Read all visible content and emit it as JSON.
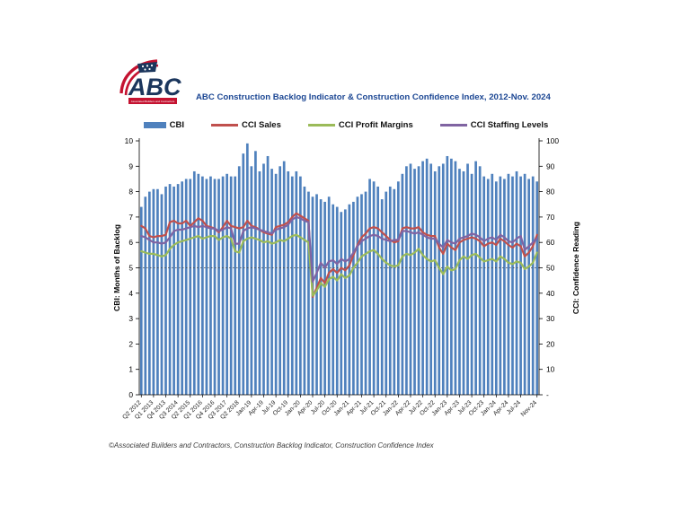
{
  "header": {
    "title": "ABC Construction Backlog Indicator & Construction Confidence Index, 2012-Nov. 2024",
    "title_color": "#1B4693",
    "logo": {
      "text": "ABC",
      "subtext": "Associated Builders and Contractors",
      "navy": "#1B365D",
      "red": "#C41230"
    }
  },
  "footer": {
    "text": "©Associated Builders and Contractors, Construction Backlog Indicator, Construction Confidence Index"
  },
  "legend": {
    "items": [
      {
        "label": "CBI",
        "type": "bar",
        "color": "#4F81BD"
      },
      {
        "label": "CCI Sales",
        "type": "line",
        "color": "#C0504D"
      },
      {
        "label": "CCI Profit Margins",
        "type": "line",
        "color": "#9BBB59"
      },
      {
        "label": "CCI Staffing Levels",
        "type": "line",
        "color": "#8064A2"
      }
    ]
  },
  "chart_data": {
    "type": "bar",
    "combo": "bars on left axis + 3 lines on right axis",
    "title": "ABC Construction Backlog Indicator & Construction Confidence Index, 2012-Nov. 2024",
    "cadence_note": "98 periods: quarterly Q2 2012-Q4 2018, monthly Jan 2019-Nov 2024",
    "left_axis": {
      "label": "CBI: Months of Backlog",
      "min": 0,
      "max": 10,
      "tick_step": 1
    },
    "right_axis": {
      "label": "CCI: Confidence Reading",
      "min": 0,
      "max": 100,
      "tick_step": 10,
      "zero_tick_label": "-"
    },
    "reference_line": {
      "axis": "right",
      "value": 50,
      "style": "dotted"
    },
    "grid": false,
    "legend_position": "top",
    "x_tick_labels": [
      "Q2 2012",
      "Q1 2013",
      "Q4 2013",
      "Q3 2014",
      "Q2 2015",
      "Q1 2016",
      "Q4 2016",
      "Q3 2017",
      "Q2 2018",
      "Jan-19",
      "Apr-19",
      "Jul-19",
      "Oct-19",
      "Jan-20",
      "Apr-20",
      "Jul-20",
      "Oct-20",
      "Jan-21",
      "Apr-21",
      "Jul-21",
      "Oct-21",
      "Jan-22",
      "Apr-22",
      "Jul-22",
      "Oct-22",
      "Jan-23",
      "Apr-23",
      "Jul-23",
      "Oct-23",
      "Jan-24",
      "Apr-24",
      "Jul-24",
      "Nov-24"
    ],
    "x_tick_bar_index": [
      0,
      3,
      6,
      9,
      12,
      15,
      18,
      21,
      24,
      27,
      30,
      33,
      36,
      39,
      42,
      45,
      48,
      51,
      54,
      57,
      60,
      63,
      66,
      69,
      72,
      75,
      78,
      81,
      84,
      87,
      90,
      93,
      97
    ],
    "bars": {
      "name": "CBI",
      "axis": "left",
      "color": "#4F81BD",
      "values": [
        7.4,
        7.8,
        8.0,
        8.1,
        8.1,
        7.9,
        8.2,
        8.3,
        8.2,
        8.3,
        8.4,
        8.5,
        8.5,
        8.8,
        8.7,
        8.6,
        8.5,
        8.6,
        8.5,
        8.5,
        8.6,
        8.7,
        8.6,
        8.6,
        9.0,
        9.5,
        9.9,
        9.0,
        9.6,
        8.8,
        9.1,
        9.4,
        8.9,
        8.7,
        9.0,
        9.2,
        8.8,
        8.6,
        8.8,
        8.6,
        8.2,
        8.0,
        7.8,
        7.9,
        7.7,
        7.6,
        7.8,
        7.5,
        7.4,
        7.2,
        7.3,
        7.5,
        7.6,
        7.8,
        7.9,
        8.0,
        8.5,
        8.4,
        8.2,
        7.7,
        8.0,
        8.2,
        8.1,
        8.4,
        8.7,
        9.0,
        9.1,
        8.9,
        9.0,
        9.2,
        9.3,
        9.1,
        8.8,
        9.0,
        9.1,
        9.4,
        9.3,
        9.2,
        8.9,
        8.8,
        9.1,
        8.7,
        9.2,
        9.0,
        8.6,
        8.5,
        8.7,
        8.4,
        8.6,
        8.5,
        8.7,
        8.6,
        8.8,
        8.6,
        8.7,
        8.5,
        8.6,
        8.4
      ]
    },
    "series": [
      {
        "name": "CCI Sales",
        "axis": "right",
        "color": "#C0504D",
        "values": [
          66.5,
          65.5,
          62.5,
          62,
          62.5,
          62.5,
          63,
          68,
          68.5,
          67.5,
          67.5,
          68.5,
          66.5,
          68,
          69.5,
          68.5,
          66.5,
          66,
          65.5,
          64,
          66,
          68.5,
          66.5,
          66,
          65.5,
          66,
          68.5,
          66.5,
          66,
          65,
          64,
          63.5,
          63,
          66,
          66.5,
          67,
          68,
          70,
          71.5,
          70.5,
          69.5,
          68.5,
          38.5,
          42,
          46,
          44,
          48,
          49.5,
          48,
          50,
          49,
          51,
          55,
          59,
          62,
          63.5,
          65.5,
          66,
          65.5,
          64,
          62.5,
          61,
          60,
          60.5,
          65.5,
          66,
          65.5,
          65.5,
          66,
          64,
          63,
          62.5,
          62.5,
          58,
          55.5,
          59.5,
          58,
          57,
          60,
          61,
          61.5,
          62,
          61.5,
          60.5,
          58.5,
          59.5,
          60,
          59,
          61.5,
          60.5,
          59,
          58,
          59.5,
          58.5,
          54.5,
          56,
          58.5,
          63
        ]
      },
      {
        "name": "CCI Profit Margins",
        "axis": "right",
        "color": "#9BBB59",
        "values": [
          56.5,
          56,
          55.5,
          55.5,
          55,
          54.5,
          55,
          57.5,
          59,
          60,
          60.5,
          61,
          61.5,
          62,
          62.5,
          61.5,
          62,
          62.5,
          62.5,
          61,
          62,
          62.5,
          61.5,
          56.5,
          56,
          60.5,
          61.5,
          62,
          61.5,
          61,
          60,
          60.5,
          59.5,
          60,
          61,
          60.5,
          61.5,
          62.5,
          63,
          62,
          61,
          60,
          39,
          41,
          44,
          42.5,
          45.5,
          46.5,
          45,
          47.5,
          46,
          47,
          50,
          52,
          54.5,
          55.5,
          56.5,
          57,
          55.5,
          53.5,
          52,
          51,
          50.5,
          51,
          54.5,
          55.5,
          55,
          56,
          57.5,
          55,
          53.5,
          52.5,
          53,
          50,
          47.5,
          50.5,
          49,
          49.5,
          53,
          54.5,
          53.5,
          55,
          55.5,
          54,
          52.5,
          53,
          53.5,
          52.5,
          54.5,
          53.5,
          52,
          51.5,
          52.5,
          52,
          49.5,
          50.5,
          52,
          56
        ]
      },
      {
        "name": "CCI Staffing Levels",
        "axis": "right",
        "color": "#8064A2",
        "values": [
          62.5,
          62,
          61,
          60,
          60,
          59.5,
          60,
          62,
          64.5,
          65,
          65,
          65.5,
          66,
          66.5,
          66,
          66.5,
          66,
          65.5,
          65.5,
          64.5,
          65,
          66,
          65.5,
          59.5,
          59.5,
          64.5,
          65.5,
          66,
          65.5,
          65,
          64.5,
          64,
          63.5,
          65,
          65.5,
          66,
          67,
          69,
          70,
          69.5,
          68.5,
          68,
          44.5,
          48,
          52,
          50,
          52.5,
          53,
          51.5,
          53.5,
          52.5,
          53.5,
          56,
          58.5,
          60.5,
          61.5,
          62.5,
          63,
          62.5,
          61.5,
          61,
          60.5,
          61,
          61,
          64.5,
          64.5,
          64,
          63.5,
          64,
          63,
          62,
          61.5,
          61.5,
          59.5,
          58,
          61,
          60,
          59.5,
          61.5,
          62,
          62.5,
          63.5,
          63,
          62,
          60.5,
          61.5,
          62,
          61,
          63,
          62,
          60.5,
          60,
          61.5,
          62.5,
          57,
          58.5,
          60,
          61.5
        ]
      }
    ]
  }
}
